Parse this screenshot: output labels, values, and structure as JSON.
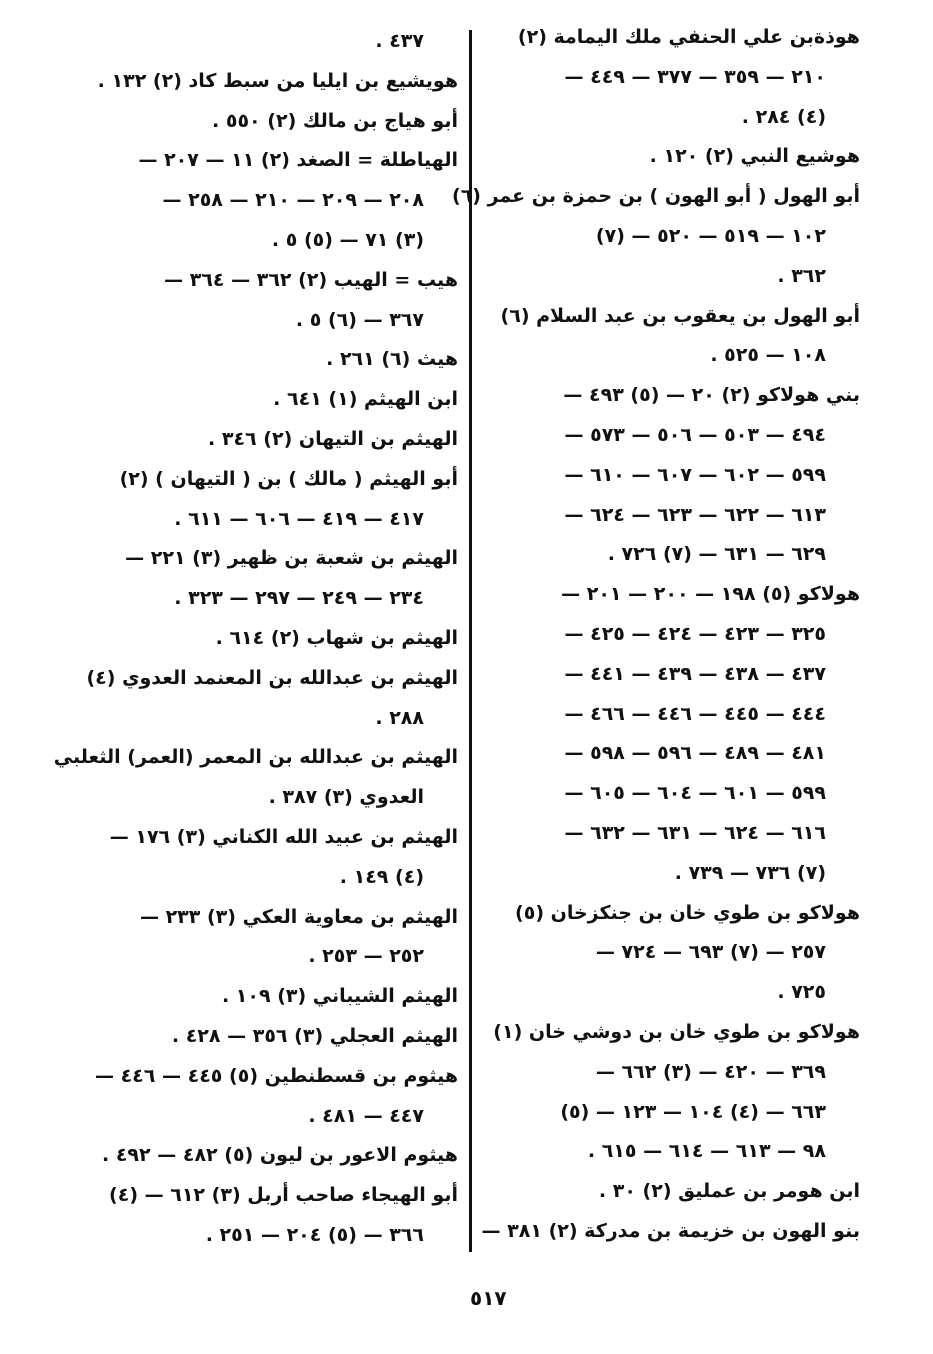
{
  "page_number": "٥١٧",
  "columns": {
    "right": [
      {
        "text": "هوذةبن علي الحنفي ملك اليمامة (٢)",
        "cont": false
      },
      {
        "text": "٢١٠ — ٣٥٩ — ٣٧٧ — ٤٤٩ —",
        "cont": true
      },
      {
        "text": "(٤) ٢٨٤ .",
        "cont": true
      },
      {
        "text": "هوشيع النبي (٢) ١٢٠ .",
        "cont": false
      },
      {
        "text": "أبو الهول ( أبو الهون ) بن حمزة بن عمر (٦)",
        "cont": false
      },
      {
        "text": "١٠٢ — ٥١٩ — ٥٢٠ — (٧)",
        "cont": true
      },
      {
        "text": "٣٦٢ .",
        "cont": true
      },
      {
        "text": "أبو الهول بن يعقوب بن عبد السلام (٦)",
        "cont": false
      },
      {
        "text": "١٠٨ — ٥٢٥ .",
        "cont": true
      },
      {
        "text": "بني هولاكو (٢) ٢٠ — (٥) ٤٩٣ —",
        "cont": false
      },
      {
        "text": "٤٩٤ — ٥٠٣ — ٥٠٦ — ٥٧٣ —",
        "cont": true
      },
      {
        "text": "٥٩٩ — ٦٠٢ — ٦٠٧ — ٦١٠ —",
        "cont": true
      },
      {
        "text": "٦١٣ — ٦٢٢ — ٦٢٣ — ٦٢٤ —",
        "cont": true
      },
      {
        "text": "٦٢٩ — ٦٣١ — (٧) ٧٢٦ .",
        "cont": true
      },
      {
        "text": "هولاكو (٥) ١٩٨ — ٢٠٠ — ٢٠١ —",
        "cont": false
      },
      {
        "text": "٣٢٥ — ٤٢٣ — ٤٢٤ — ٤٢٥ —",
        "cont": true
      },
      {
        "text": "٤٣٧ — ٤٣٨ — ٤٣٩ — ٤٤١ —",
        "cont": true
      },
      {
        "text": "٤٤٤ — ٤٤٥ — ٤٤٦ — ٤٦٦ —",
        "cont": true
      },
      {
        "text": "٤٨١ — ٤٨٩ — ٥٩٦ — ٥٩٨ —",
        "cont": true
      },
      {
        "text": "٥٩٩ — ٦٠١ — ٦٠٤ — ٦٠٥ —",
        "cont": true
      },
      {
        "text": "٦١٦ — ٦٢٤ — ٦٣١ — ٦٣٢ —",
        "cont": true
      },
      {
        "text": "(٧) ٧٣٦ — ٧٣٩ .",
        "cont": true
      },
      {
        "text": "هولاكو بن طوي خان بن جنكزخان (٥)",
        "cont": false
      },
      {
        "text": "٢٥٧ — (٧) ٦٩٣ — ٧٢٤ —",
        "cont": true
      },
      {
        "text": "٧٢٥ .",
        "cont": true
      },
      {
        "text": "هولاكو بن طوي خان بن دوشي خان (١)",
        "cont": false
      },
      {
        "text": "٣٦٩ — ٤٢٠ — (٣) ٦٦٢ —",
        "cont": true
      },
      {
        "text": "٦٦٣ — (٤) ١٠٤ — ١٢٣ — (٥)",
        "cont": true
      },
      {
        "text": "٩٨ — ٦١٣ — ٦١٤ — ٦١٥ .",
        "cont": true
      },
      {
        "text": "ابن هومر بن عمليق (٢) ٣٠ .",
        "cont": false
      },
      {
        "text": "بنو الهون بن خزيمة بن مدركة (٢) ٣٨١ —",
        "cont": false
      }
    ],
    "left": [
      {
        "text": "٤٣٧ .",
        "cont": true
      },
      {
        "text": "هويشيع بن ايليا من سبط كاد (٢) ١٣٢ .",
        "cont": false
      },
      {
        "text": "أبو هياج بن مالك (٢) ٥٥٠ .",
        "cont": false
      },
      {
        "text": "الهياطلة = الصغد (٢) ١١ — ٢٠٧ —",
        "cont": false
      },
      {
        "text": "٢٠٨ — ٢٠٩ — ٢١٠ — ٢٥٨ —",
        "cont": true
      },
      {
        "text": "(٣) ٧١ — (٥) ٥ .",
        "cont": true
      },
      {
        "text": "هيب = الهيب (٢) ٣٦٢ — ٣٦٤ —",
        "cont": false
      },
      {
        "text": "٣٦٧ — (٦) ٥ .",
        "cont": true
      },
      {
        "text": "هيث (٦) ٢٦١ .",
        "cont": false
      },
      {
        "text": "ابن الهيثم (١) ٦٤١ .",
        "cont": false
      },
      {
        "text": "الهيثم بن التيهان (٢) ٣٤٦ .",
        "cont": false
      },
      {
        "text": "أبو الهيثم ( مالك ) بن ( التيهان ) (٢)",
        "cont": false
      },
      {
        "text": "٤١٧ — ٤١٩ — ٦٠٦ — ٦١١ .",
        "cont": true
      },
      {
        "text": "الهيثم بن شعبة بن ظهير (٣) ٢٢١ —",
        "cont": false
      },
      {
        "text": "٢٣٤ — ٢٤٩ — ٢٩٧ — ٣٢٣ .",
        "cont": true
      },
      {
        "text": "الهيثم بن شهاب (٢) ٦١٤ .",
        "cont": false
      },
      {
        "text": "الهيثم بن عبدالله بن المعنمد العدوي (٤)",
        "cont": false
      },
      {
        "text": "٢٨٨ .",
        "cont": true
      },
      {
        "text": "الهيثم بن عبدالله بن المعمر (العمر) الثعلبي",
        "cont": false
      },
      {
        "text": "العدوي (٣) ٣٨٧ .",
        "cont": true
      },
      {
        "text": "الهيثم بن عبيد الله الكناني (٣) ١٧٦ —",
        "cont": false
      },
      {
        "text": "(٤) ١٤٩ .",
        "cont": true
      },
      {
        "text": "الهيثم بن معاوية العكي (٣) ٢٣٣ —",
        "cont": false
      },
      {
        "text": "٢٥٢ — ٢٥٣ .",
        "cont": true
      },
      {
        "text": "الهيثم الشيباني (٣) ١٠٩ .",
        "cont": false
      },
      {
        "text": "الهيثم العجلي (٣) ٣٥٦ — ٤٢٨ .",
        "cont": false
      },
      {
        "text": "هيثوم بن قسطنطين (٥) ٤٤٥ — ٤٤٦ —",
        "cont": false
      },
      {
        "text": "٤٤٧ — ٤٨١ .",
        "cont": true
      },
      {
        "text": "هيثوم الاعور بن ليون (٥) ٤٨٢ — ٤٩٢ .",
        "cont": false
      },
      {
        "text": "أبو الهيجاء صاحب أربل (٣) ٦١٢ — (٤)",
        "cont": false
      },
      {
        "text": "٣٦٦ — (٥) ٢٠٤ — ٢٥١ .",
        "cont": true
      }
    ]
  }
}
